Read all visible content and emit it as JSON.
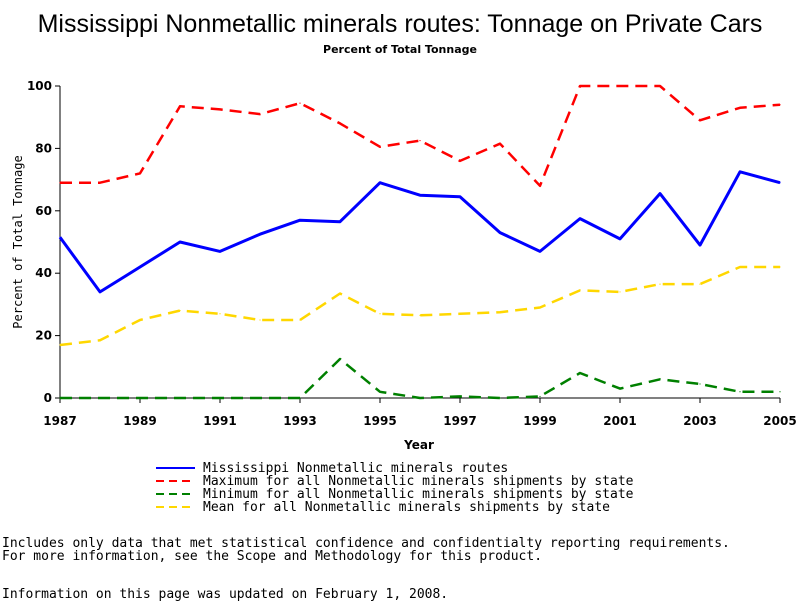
{
  "chart_data": {
    "type": "line",
    "title": "Mississippi Nonmetallic minerals routes: Tonnage on Private Cars",
    "subtitle": "Percent of Total Tonnage",
    "xlabel": "Year",
    "ylabel": "Percent of Total Tonnage",
    "xlim": [
      1987,
      2005
    ],
    "ylim": [
      0,
      100
    ],
    "x_ticks": [
      "1987",
      "1989",
      "1991",
      "1993",
      "1995",
      "1997",
      "1999",
      "2001",
      "2003",
      "2005"
    ],
    "y_ticks": [
      "0",
      "20",
      "40",
      "60",
      "80",
      "100"
    ],
    "x": [
      1987,
      1988,
      1989,
      1990,
      1991,
      1992,
      1993,
      1994,
      1995,
      1996,
      1997,
      1998,
      1999,
      2000,
      2001,
      2002,
      2003,
      2004,
      2005
    ],
    "series": [
      {
        "name": "Mississippi Nonmetallic minerals routes",
        "color": "#0000ff",
        "dash": "solid",
        "values": [
          51.5,
          34,
          42,
          50,
          47,
          52.5,
          57,
          56.5,
          69,
          65,
          64.5,
          53,
          47,
          57.5,
          51,
          65.5,
          49,
          72.5,
          69
        ]
      },
      {
        "name": "Maximum for all Nonmetallic minerals shipments by state",
        "color": "#ff0000",
        "dash": "dashed",
        "values": [
          69,
          69,
          72,
          93.5,
          92.5,
          91,
          94.5,
          88,
          80.5,
          82.5,
          76,
          81.5,
          68,
          100,
          100,
          100,
          89,
          93,
          94
        ]
      },
      {
        "name": "Minimum for all Nonmetallic minerals shipments by state",
        "color": "#008000",
        "dash": "dashed",
        "values": [
          0,
          0,
          0,
          0,
          0,
          0,
          0,
          12.5,
          2,
          0,
          0.5,
          0,
          0.5,
          8,
          3,
          6,
          4.5,
          2,
          2
        ]
      },
      {
        "name": "Mean for all Nonmetallic minerals shipments by state",
        "color": "#ffd700",
        "dash": "dashed",
        "values": [
          17,
          18.5,
          25,
          28,
          27,
          25,
          25,
          33.5,
          27,
          26.5,
          27,
          27.5,
          29,
          34.5,
          34,
          36.5,
          36.5,
          42,
          42
        ]
      }
    ],
    "grid": false,
    "legend_position": "bottom"
  },
  "notes": {
    "line1": "Includes only data that met statistical confidence and confidentialty reporting requirements.",
    "line2": "For more information, see the Scope and Methodology for this product.",
    "updated": "Information on this page was updated on February 1, 2008."
  }
}
